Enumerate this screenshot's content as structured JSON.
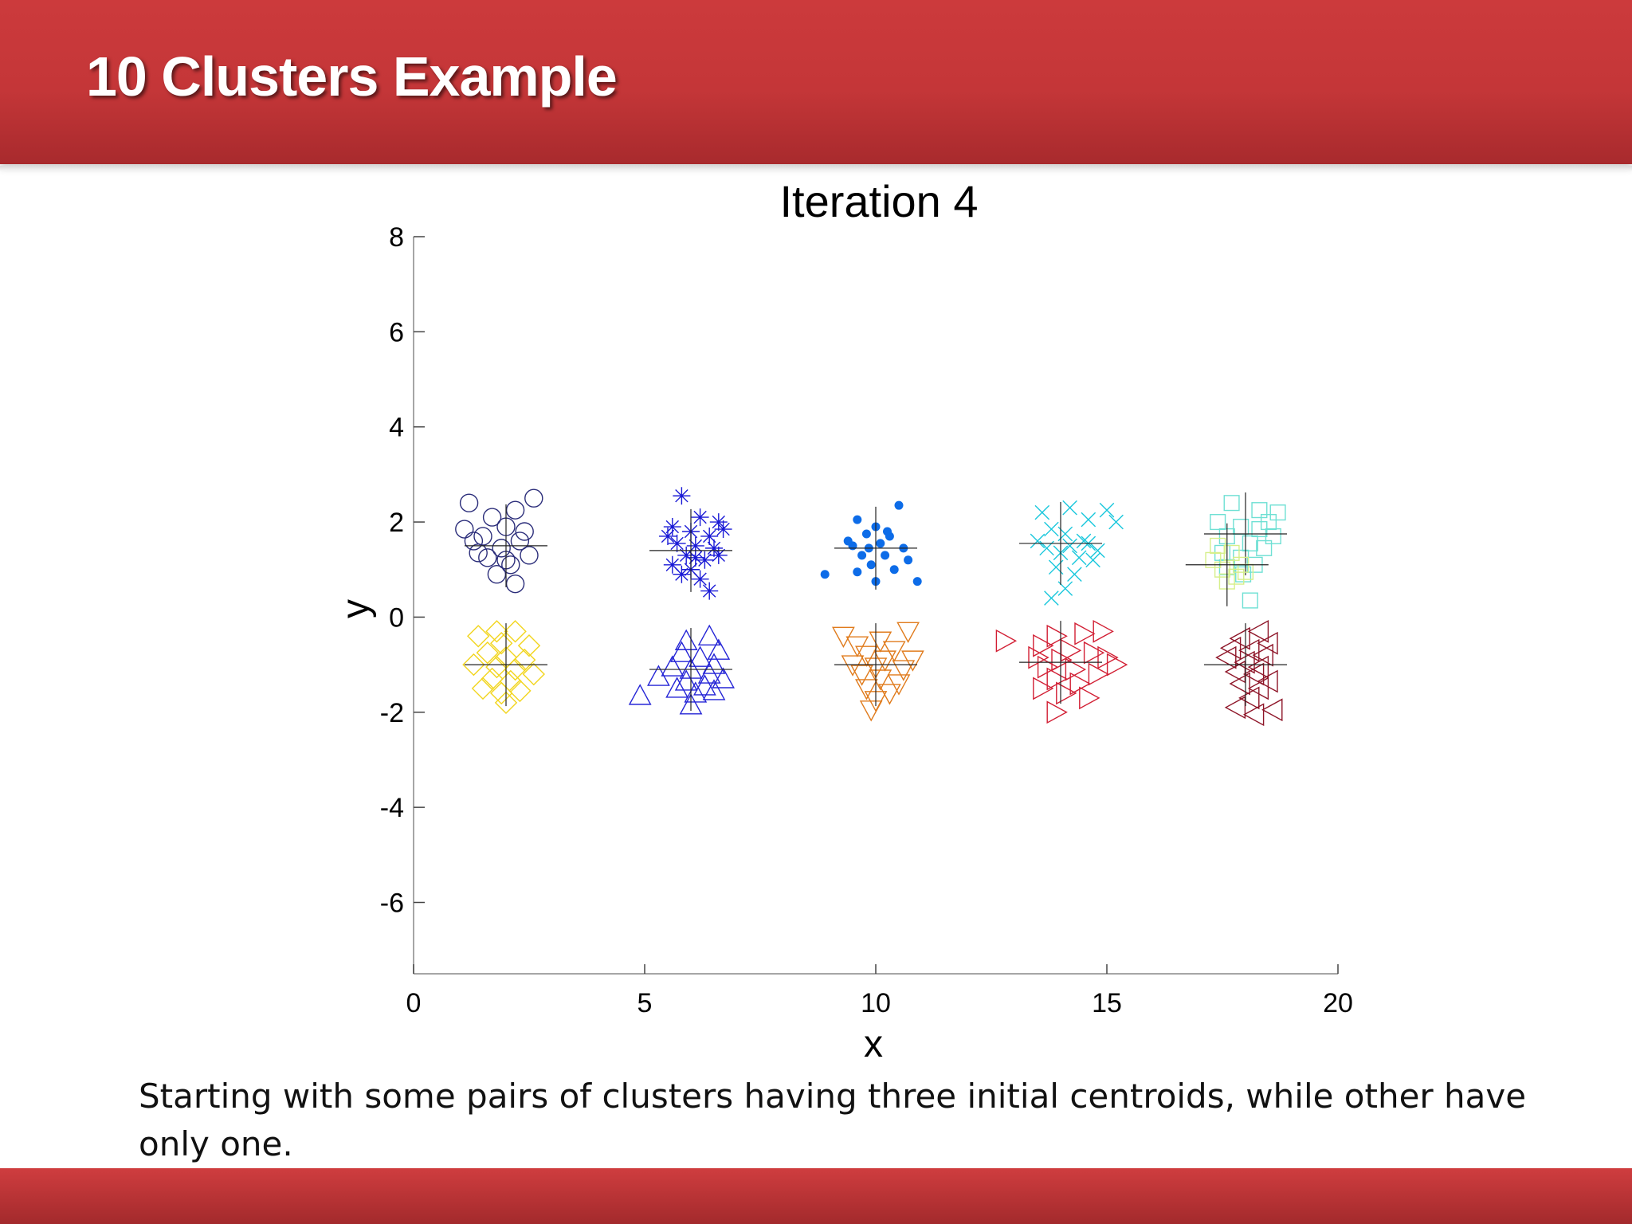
{
  "slide": {
    "title": "10 Clusters Example",
    "caption": "Starting with some pairs of clusters having three initial centroids, while other have only one.",
    "colors": {
      "band": "#c43638",
      "title_text": "#ffffff"
    }
  },
  "chart_data": {
    "type": "scatter",
    "title": "Iteration 4",
    "xlabel": "x",
    "ylabel": "y",
    "xlim": [
      0,
      20
    ],
    "ylim": [
      -7.5,
      8
    ],
    "xticks": [
      0,
      5,
      10,
      15,
      20
    ],
    "yticks": [
      -6,
      -4,
      -2,
      0,
      2,
      4,
      6,
      8
    ],
    "grid": false,
    "legend": "none",
    "series": [
      {
        "marker": "circle-open",
        "color": "#2b2d7a",
        "points": [
          [
            1.2,
            2.4
          ],
          [
            1.1,
            1.85
          ],
          [
            2.6,
            2.5
          ],
          [
            2.2,
            2.25
          ],
          [
            1.7,
            2.1
          ],
          [
            2.0,
            1.9
          ],
          [
            1.5,
            1.7
          ],
          [
            2.3,
            1.6
          ],
          [
            1.9,
            1.45
          ],
          [
            2.5,
            1.3
          ],
          [
            1.6,
            1.25
          ],
          [
            2.1,
            1.1
          ],
          [
            1.8,
            0.9
          ],
          [
            2.2,
            0.7
          ],
          [
            1.4,
            1.35
          ],
          [
            2.4,
            1.8
          ],
          [
            1.3,
            1.6
          ],
          [
            2.0,
            1.2
          ]
        ],
        "centroid": [
          2.0,
          1.5
        ]
      },
      {
        "marker": "asterisk",
        "color": "#1a1ad6",
        "points": [
          [
            5.8,
            2.55
          ],
          [
            6.2,
            2.1
          ],
          [
            6.6,
            2.0
          ],
          [
            5.6,
            1.9
          ],
          [
            6.0,
            1.8
          ],
          [
            6.4,
            1.7
          ],
          [
            5.7,
            1.55
          ],
          [
            6.1,
            1.5
          ],
          [
            6.5,
            1.45
          ],
          [
            5.9,
            1.3
          ],
          [
            6.3,
            1.2
          ],
          [
            5.6,
            1.1
          ],
          [
            6.0,
            1.0
          ],
          [
            6.6,
            1.3
          ],
          [
            6.2,
            0.8
          ],
          [
            6.4,
            0.55
          ],
          [
            5.8,
            0.9
          ],
          [
            6.7,
            1.85
          ],
          [
            5.5,
            1.7
          ],
          [
            6.1,
            1.25
          ]
        ],
        "centroid": [
          6.0,
          1.4
        ]
      },
      {
        "marker": "dot",
        "color": "#0d6ce8",
        "points": [
          [
            9.6,
            2.05
          ],
          [
            10.5,
            2.35
          ],
          [
            10.0,
            1.9
          ],
          [
            9.8,
            1.75
          ],
          [
            10.3,
            1.7
          ],
          [
            9.5,
            1.5
          ],
          [
            10.1,
            1.55
          ],
          [
            10.6,
            1.45
          ],
          [
            9.7,
            1.3
          ],
          [
            10.2,
            1.3
          ],
          [
            9.9,
            1.1
          ],
          [
            10.4,
            1.0
          ],
          [
            9.6,
            0.95
          ],
          [
            10.0,
            0.75
          ],
          [
            10.9,
            0.75
          ],
          [
            8.9,
            0.9
          ],
          [
            10.7,
            1.2
          ],
          [
            9.4,
            1.6
          ],
          [
            10.25,
            1.8
          ],
          [
            9.85,
            1.45
          ]
        ],
        "centroid": [
          10.0,
          1.45
        ]
      },
      {
        "marker": "x",
        "color": "#18c7dc",
        "points": [
          [
            13.6,
            2.2
          ],
          [
            14.2,
            2.3
          ],
          [
            14.6,
            2.05
          ],
          [
            15.0,
            2.25
          ],
          [
            15.2,
            2.0
          ],
          [
            13.8,
            1.85
          ],
          [
            14.1,
            1.75
          ],
          [
            14.5,
            1.6
          ],
          [
            13.7,
            1.45
          ],
          [
            14.0,
            1.35
          ],
          [
            14.4,
            1.25
          ],
          [
            14.8,
            1.4
          ],
          [
            13.9,
            1.05
          ],
          [
            14.3,
            0.9
          ],
          [
            14.1,
            0.6
          ],
          [
            13.8,
            0.4
          ],
          [
            14.6,
            1.55
          ],
          [
            13.5,
            1.6
          ],
          [
            14.2,
            1.5
          ],
          [
            14.7,
            1.2
          ]
        ],
        "centroid": [
          14.0,
          1.55
        ]
      },
      {
        "marker": "square-open",
        "color": "#6fe0d4",
        "points": [
          [
            17.7,
            2.4
          ],
          [
            18.3,
            2.25
          ],
          [
            18.5,
            2.0
          ],
          [
            18.7,
            2.2
          ],
          [
            17.4,
            2.0
          ],
          [
            17.9,
            1.9
          ],
          [
            18.3,
            1.85
          ],
          [
            17.6,
            1.7
          ],
          [
            18.1,
            1.55
          ],
          [
            18.4,
            1.45
          ],
          [
            17.5,
            1.35
          ],
          [
            17.9,
            1.25
          ],
          [
            18.2,
            1.1
          ],
          [
            17.6,
            1.05
          ],
          [
            17.95,
            0.9
          ],
          [
            18.1,
            0.35
          ],
          [
            18.6,
            1.7
          ]
        ],
        "centroid": [
          18.0,
          1.75
        ]
      },
      {
        "marker": "square-open",
        "color": "#d6ef8a",
        "points": [
          [
            17.4,
            1.5
          ],
          [
            17.7,
            1.35
          ],
          [
            17.9,
            1.1
          ],
          [
            17.5,
            1.0
          ],
          [
            17.8,
            0.85
          ],
          [
            17.6,
            0.75
          ],
          [
            18.0,
            0.95
          ],
          [
            17.3,
            1.2
          ]
        ],
        "centroid": [
          17.6,
          1.1
        ]
      },
      {
        "marker": "diamond-open",
        "color": "#f2d51d",
        "points": [
          [
            1.4,
            -0.4
          ],
          [
            2.2,
            -0.3
          ],
          [
            1.9,
            -0.55
          ],
          [
            2.5,
            -0.6
          ],
          [
            1.6,
            -0.75
          ],
          [
            2.0,
            -0.85
          ],
          [
            2.4,
            -0.9
          ],
          [
            1.3,
            -1.0
          ],
          [
            1.8,
            -1.05
          ],
          [
            2.2,
            -1.1
          ],
          [
            2.6,
            -1.2
          ],
          [
            1.7,
            -1.3
          ],
          [
            2.1,
            -1.35
          ],
          [
            1.5,
            -1.5
          ],
          [
            1.9,
            -1.6
          ],
          [
            2.3,
            -1.55
          ],
          [
            2.0,
            -1.8
          ],
          [
            1.8,
            -0.3
          ]
        ],
        "centroid": [
          2.0,
          -1.0
        ]
      },
      {
        "marker": "triangle-up-open",
        "color": "#2424d6",
        "points": [
          [
            6.4,
            -0.4
          ],
          [
            5.9,
            -0.5
          ],
          [
            6.6,
            -0.7
          ],
          [
            5.8,
            -0.75
          ],
          [
            6.2,
            -0.85
          ],
          [
            6.5,
            -1.0
          ],
          [
            5.6,
            -1.05
          ],
          [
            6.0,
            -1.1
          ],
          [
            6.4,
            -1.2
          ],
          [
            5.3,
            -1.25
          ],
          [
            5.9,
            -1.35
          ],
          [
            6.3,
            -1.45
          ],
          [
            5.7,
            -1.5
          ],
          [
            6.1,
            -1.6
          ],
          [
            6.5,
            -1.55
          ],
          [
            4.9,
            -1.65
          ],
          [
            6.0,
            -1.85
          ],
          [
            6.7,
            -1.3
          ]
        ],
        "centroid": [
          6.0,
          -1.1
        ]
      },
      {
        "marker": "triangle-down-open",
        "color": "#e07b1c",
        "points": [
          [
            9.3,
            -0.4
          ],
          [
            10.7,
            -0.3
          ],
          [
            10.1,
            -0.5
          ],
          [
            9.6,
            -0.6
          ],
          [
            10.4,
            -0.7
          ],
          [
            9.8,
            -0.8
          ],
          [
            10.2,
            -0.9
          ],
          [
            9.5,
            -1.0
          ],
          [
            10.0,
            -1.05
          ],
          [
            10.6,
            -1.1
          ],
          [
            9.7,
            -1.2
          ],
          [
            10.1,
            -1.3
          ],
          [
            10.5,
            -1.4
          ],
          [
            9.8,
            -1.5
          ],
          [
            10.3,
            -1.6
          ],
          [
            10.0,
            -1.75
          ],
          [
            9.9,
            -1.95
          ],
          [
            10.8,
            -0.9
          ]
        ],
        "centroid": [
          10.0,
          -1.0
        ]
      },
      {
        "marker": "triangle-right-open",
        "color": "#d21f34",
        "points": [
          [
            12.8,
            -0.5
          ],
          [
            13.9,
            -0.4
          ],
          [
            14.5,
            -0.35
          ],
          [
            14.9,
            -0.3
          ],
          [
            13.6,
            -0.6
          ],
          [
            14.2,
            -0.7
          ],
          [
            14.7,
            -0.75
          ],
          [
            13.5,
            -0.85
          ],
          [
            14.0,
            -0.9
          ],
          [
            15.0,
            -0.85
          ],
          [
            13.7,
            -1.05
          ],
          [
            14.3,
            -1.1
          ],
          [
            14.8,
            -1.2
          ],
          [
            13.9,
            -1.3
          ],
          [
            14.4,
            -1.4
          ],
          [
            13.6,
            -1.5
          ],
          [
            14.1,
            -1.6
          ],
          [
            14.6,
            -1.7
          ],
          [
            13.9,
            -2.0
          ],
          [
            15.2,
            -1.0
          ]
        ],
        "centroid": [
          14.0,
          -0.95
        ]
      },
      {
        "marker": "triangle-left-open",
        "color": "#8e1528",
        "points": [
          [
            18.3,
            -0.3
          ],
          [
            17.9,
            -0.45
          ],
          [
            18.5,
            -0.55
          ],
          [
            17.7,
            -0.65
          ],
          [
            18.1,
            -0.7
          ],
          [
            18.4,
            -0.8
          ],
          [
            17.6,
            -0.85
          ],
          [
            18.0,
            -0.95
          ],
          [
            18.3,
            -1.05
          ],
          [
            17.8,
            -1.15
          ],
          [
            18.2,
            -1.2
          ],
          [
            18.5,
            -1.35
          ],
          [
            17.9,
            -1.4
          ],
          [
            18.3,
            -1.5
          ],
          [
            18.1,
            -1.7
          ],
          [
            17.8,
            -1.9
          ],
          [
            18.6,
            -1.95
          ],
          [
            18.2,
            -2.05
          ]
        ],
        "centroid": [
          18.0,
          -1.0
        ]
      }
    ]
  }
}
